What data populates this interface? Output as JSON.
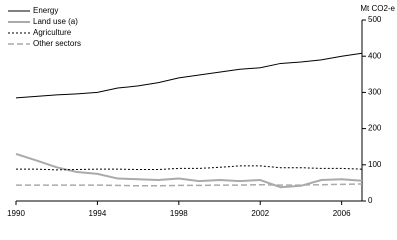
{
  "chart_data": {
    "type": "line",
    "y_axis_label": "Mt CO2-e",
    "x": [
      1990,
      1991,
      1992,
      1993,
      1994,
      1995,
      1996,
      1997,
      1998,
      1999,
      2000,
      2001,
      2002,
      2003,
      2004,
      2005,
      2006,
      2007
    ],
    "xlim": [
      1990,
      2007
    ],
    "xticks": [
      1990,
      1994,
      1998,
      2002,
      2006
    ],
    "ylim": [
      0,
      500
    ],
    "yticks": [
      0,
      100,
      200,
      300,
      400,
      500
    ],
    "legend": "top-left",
    "series": [
      {
        "name": "Energy",
        "color": "#000000",
        "dash": "solid",
        "width": 1,
        "values": [
          285,
          289,
          293,
          296,
          300,
          312,
          318,
          327,
          340,
          348,
          356,
          364,
          368,
          380,
          384,
          390,
          400,
          408
        ]
      },
      {
        "name": "Land use (a)",
        "color": "#aaaaaa",
        "dash": "solid",
        "width": 2,
        "values": [
          130,
          112,
          93,
          80,
          75,
          62,
          60,
          58,
          62,
          55,
          58,
          55,
          58,
          38,
          42,
          58,
          60,
          56
        ]
      },
      {
        "name": "Agriculture",
        "color": "#000000",
        "dash": "dotted",
        "width": 1,
        "values": [
          88,
          88,
          86,
          87,
          88,
          88,
          87,
          87,
          90,
          90,
          93,
          97,
          97,
          92,
          92,
          90,
          90,
          88
        ]
      },
      {
        "name": "Other sectors",
        "color": "#aaaaaa",
        "dash": "dashed",
        "width": 1.5,
        "values": [
          44,
          44,
          44,
          44,
          44,
          43,
          42,
          42,
          43,
          43,
          44,
          44,
          45,
          44,
          44,
          45,
          46,
          47
        ]
      }
    ]
  }
}
